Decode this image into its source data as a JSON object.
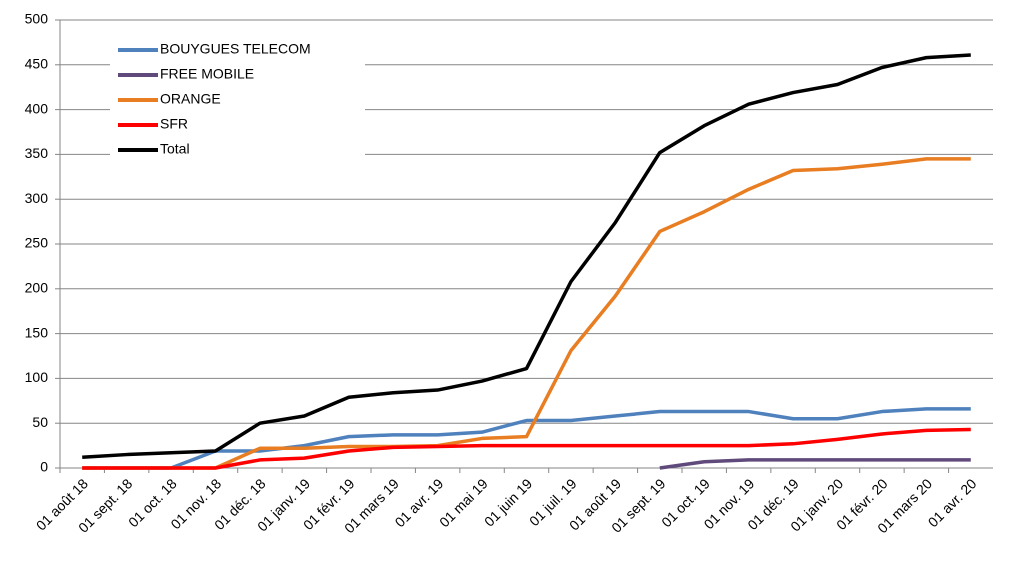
{
  "chart_data": {
    "type": "line",
    "categories": [
      "01 août 18",
      "01 sept. 18",
      "01 oct. 18",
      "01 nov. 18",
      "01 déc. 18",
      "01 janv. 19",
      "01 févr. 19",
      "01 mars 19",
      "01 avr. 19",
      "01 mai 19",
      "01 juin 19",
      "01 juil. 19",
      "01 août 19",
      "01 sept. 19",
      "01 oct. 19",
      "01 nov. 19",
      "01 déc. 19",
      "01 janv. 20",
      "01 févr. 20",
      "01 mars 20",
      "01 avr. 20"
    ],
    "series": [
      {
        "name": "BOUYGUES TELECOM",
        "color": "#4f81bd",
        "values": [
          0,
          0,
          0,
          19,
          19,
          25,
          35,
          37,
          37,
          40,
          53,
          53,
          58,
          63,
          63,
          63,
          55,
          55,
          63,
          66,
          66
        ]
      },
      {
        "name": "FREE MOBILE",
        "color": "#604a7b",
        "values": [
          null,
          null,
          null,
          null,
          null,
          null,
          null,
          null,
          null,
          null,
          null,
          null,
          null,
          0,
          7,
          9,
          9,
          9,
          9,
          9,
          9
        ]
      },
      {
        "name": "ORANGE",
        "color": "#e87d22",
        "values": [
          0,
          0,
          0,
          0,
          22,
          22,
          24,
          24,
          25,
          33,
          35,
          131,
          192,
          264,
          286,
          311,
          332,
          334,
          339,
          345,
          345
        ]
      },
      {
        "name": "SFR",
        "color": "#ff0000",
        "values": [
          0,
          0,
          0,
          0,
          9,
          11,
          19,
          23,
          24,
          25,
          25,
          25,
          25,
          25,
          25,
          25,
          27,
          32,
          38,
          42,
          43
        ]
      },
      {
        "name": "Total",
        "color": "#000000",
        "values": [
          12,
          15,
          17,
          19,
          50,
          58,
          79,
          84,
          87,
          97,
          111,
          208,
          274,
          352,
          382,
          406,
          419,
          428,
          447,
          458,
          461
        ]
      }
    ],
    "ylim": [
      0,
      500
    ],
    "yticks": [
      0,
      50,
      100,
      150,
      200,
      250,
      300,
      350,
      400,
      450,
      500
    ],
    "grid": true,
    "legend": "top-left"
  }
}
